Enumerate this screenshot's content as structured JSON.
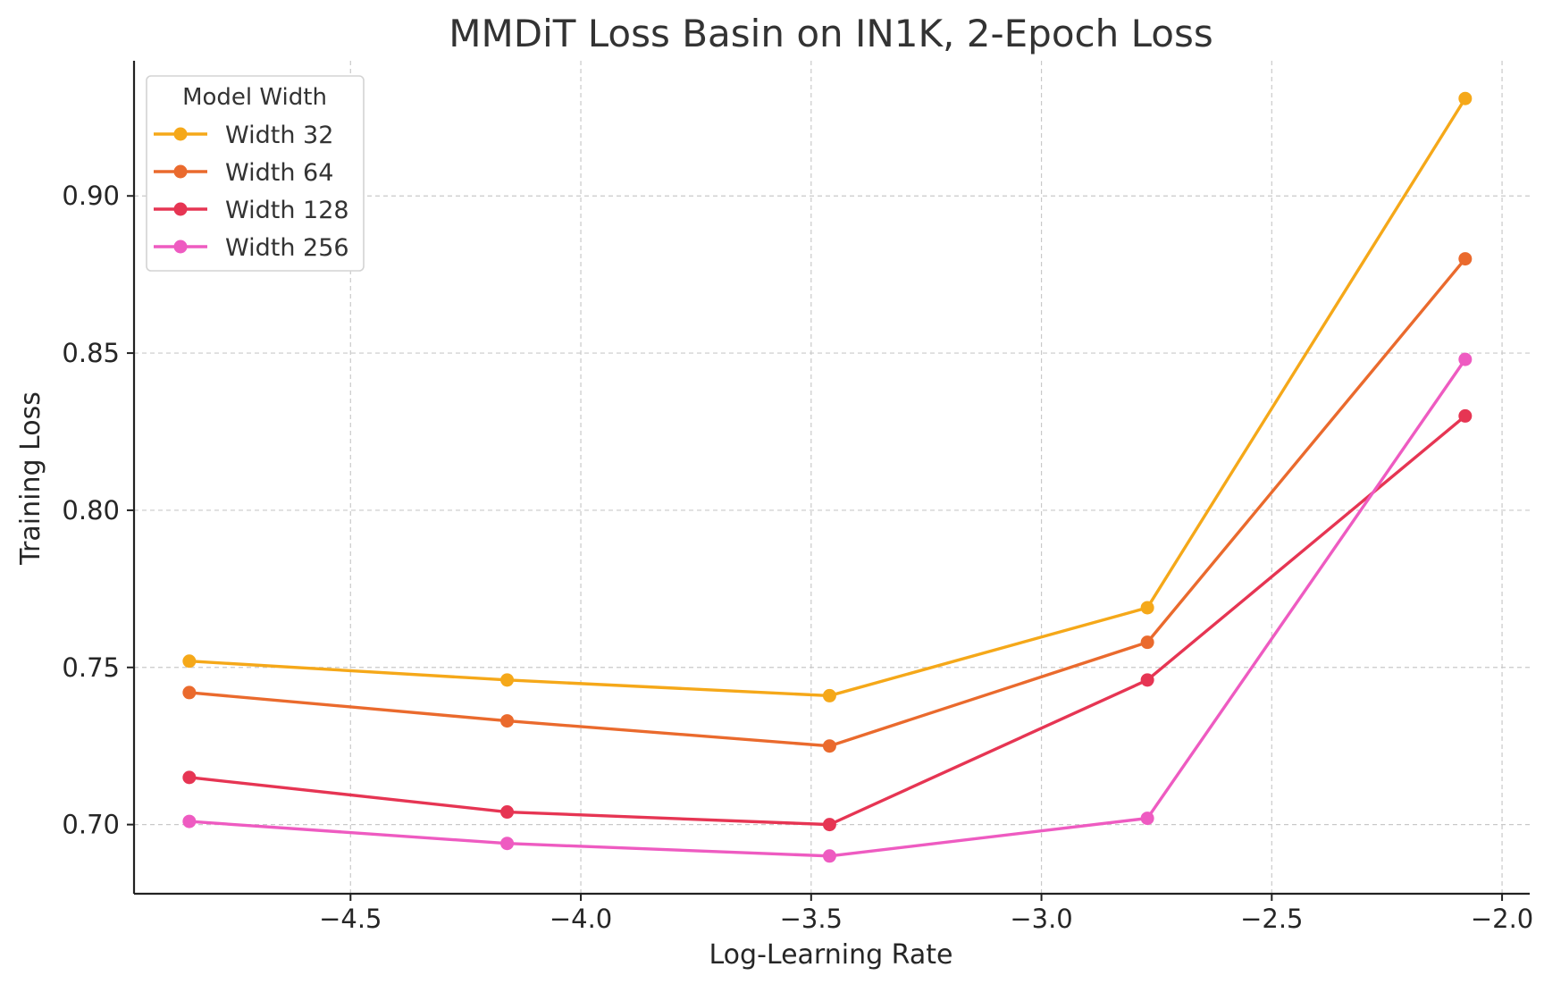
{
  "chart_data": {
    "type": "line",
    "title": "MMDiT Loss Basin on IN1K, 2-Epoch Loss",
    "xlabel": "Log-Learning Rate",
    "ylabel": "Training Loss",
    "xlim": [
      -4.97,
      -1.94
    ],
    "ylim": [
      0.678,
      0.943
    ],
    "xticks": [
      -4.5,
      -4.0,
      -3.5,
      -3.0,
      -2.5,
      -2.0
    ],
    "xtick_labels": [
      "−4.5",
      "−4.0",
      "−3.5",
      "−3.0",
      "−2.5",
      "−2.0"
    ],
    "yticks": [
      0.7,
      0.75,
      0.8,
      0.85,
      0.9
    ],
    "ytick_labels": [
      "0.70",
      "0.75",
      "0.80",
      "0.85",
      "0.90"
    ],
    "grid": true,
    "legend": {
      "title": "Model Width",
      "position": "top-left"
    },
    "x": [
      -4.85,
      -4.16,
      -3.46,
      -2.77,
      -2.08
    ],
    "series": [
      {
        "name": "Width 32",
        "color": "#F5A819",
        "values": [
          0.752,
          0.746,
          0.741,
          0.769,
          0.931
        ]
      },
      {
        "name": "Width 64",
        "color": "#EA6A2D",
        "values": [
          0.742,
          0.733,
          0.725,
          0.758,
          0.88
        ]
      },
      {
        "name": "Width 128",
        "color": "#E63553",
        "values": [
          0.715,
          0.704,
          0.7,
          0.746,
          0.83
        ]
      },
      {
        "name": "Width 256",
        "color": "#EE5BC1",
        "values": [
          0.701,
          0.694,
          0.69,
          0.702,
          0.848
        ]
      }
    ]
  }
}
